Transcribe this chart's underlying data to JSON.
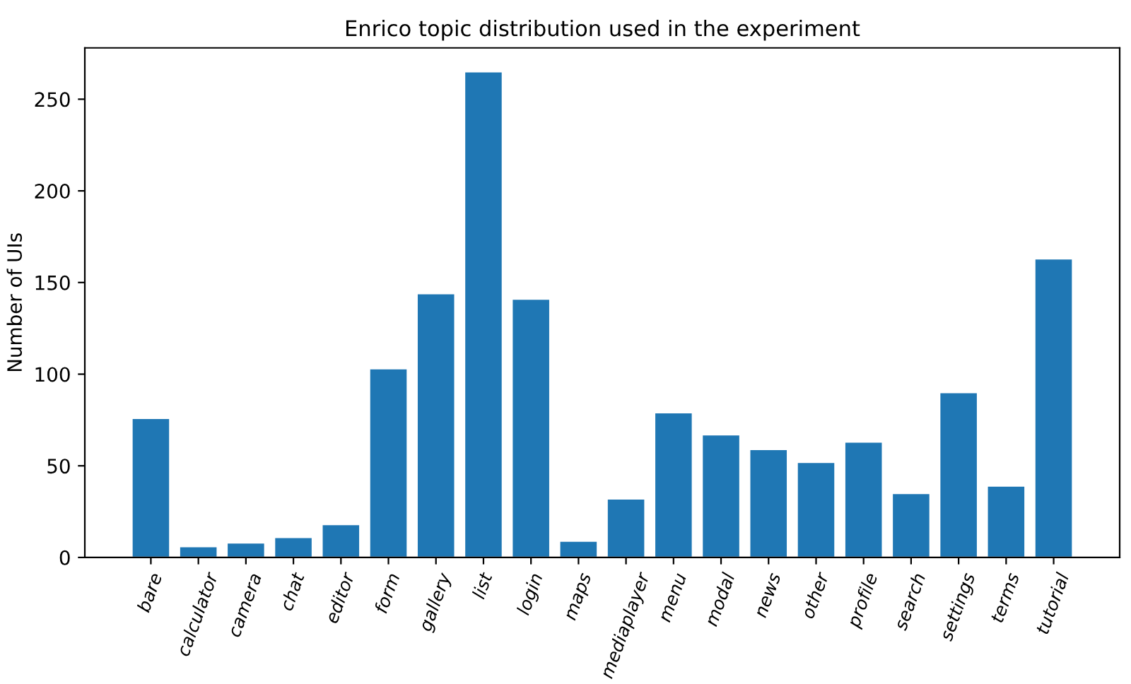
{
  "chart_data": {
    "type": "bar",
    "title": "Enrico topic distribution used in the experiment",
    "ylabel": "Number of UIs",
    "categories": [
      "bare",
      "calculator",
      "camera",
      "chat",
      "editor",
      "form",
      "gallery",
      "list",
      "login",
      "maps",
      "mediaplayer",
      "menu",
      "modal",
      "news",
      "other",
      "profile",
      "search",
      "settings",
      "terms",
      "tutorial"
    ],
    "values": [
      76,
      6,
      8,
      11,
      18,
      103,
      144,
      265,
      141,
      9,
      32,
      79,
      67,
      59,
      52,
      63,
      35,
      90,
      39,
      163
    ],
    "color": "#1f77b4",
    "ylim": [
      0,
      278
    ],
    "yticks": [
      0,
      50,
      100,
      150,
      200,
      250
    ],
    "grid": false,
    "legend": false
  }
}
